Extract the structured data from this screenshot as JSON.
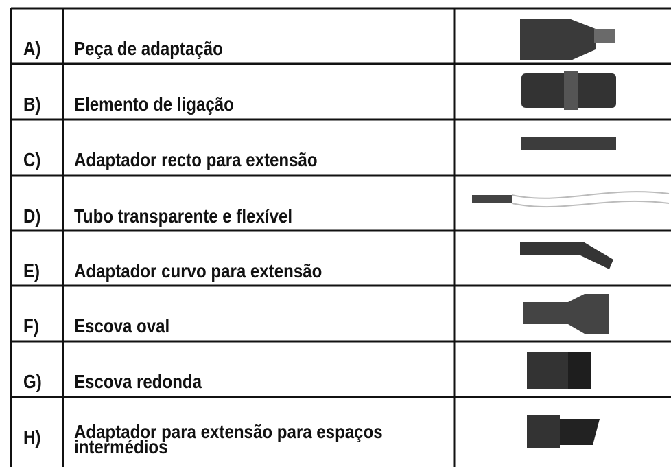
{
  "table": {
    "rows": [
      {
        "letter": "A)",
        "label": "Peça de adaptação"
      },
      {
        "letter": "B)",
        "label": "Elemento de ligação"
      },
      {
        "letter": "C)",
        "label": "Adaptador recto para extensão"
      },
      {
        "letter": "D)",
        "label": "Tubo transparente e flexível"
      },
      {
        "letter": "E)",
        "label": "Adaptador curvo para extensão"
      },
      {
        "letter": "F)",
        "label": "Escova oval"
      },
      {
        "letter": "G)",
        "label": "Escova redonda"
      },
      {
        "letter": "H)",
        "label": "Adaptador para extensão para espaços intermédios"
      }
    ]
  }
}
